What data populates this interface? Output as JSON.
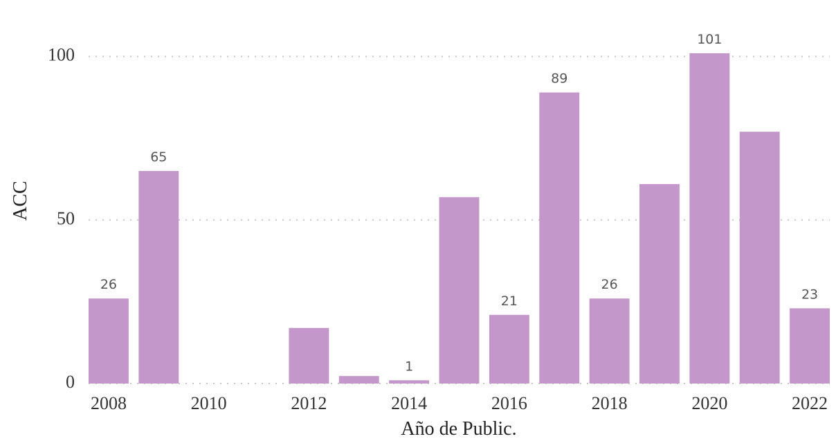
{
  "chart_data": {
    "type": "bar",
    "x": [
      2008,
      2009,
      2010,
      2011,
      2012,
      2013,
      2014,
      2015,
      2016,
      2017,
      2018,
      2019,
      2020,
      2021,
      2022
    ],
    "values": [
      26,
      65,
      null,
      null,
      17,
      2.3,
      1,
      57,
      21,
      89,
      26,
      61,
      101,
      77,
      23
    ],
    "value_labels": [
      "26",
      "65",
      null,
      null,
      null,
      null,
      "1",
      null,
      "21",
      "89",
      "26",
      null,
      "101",
      null,
      "23"
    ],
    "color": "#c397c9",
    "xlabel": "Año de Public.",
    "ylabel": "ACC",
    "xlim": [
      2007.6,
      2022.4
    ],
    "xticks": [
      2008,
      2010,
      2012,
      2014,
      2016,
      2018,
      2020,
      2022
    ],
    "ylim": [
      0,
      105
    ],
    "yticks": [
      0,
      50,
      100
    ],
    "grid": true
  }
}
